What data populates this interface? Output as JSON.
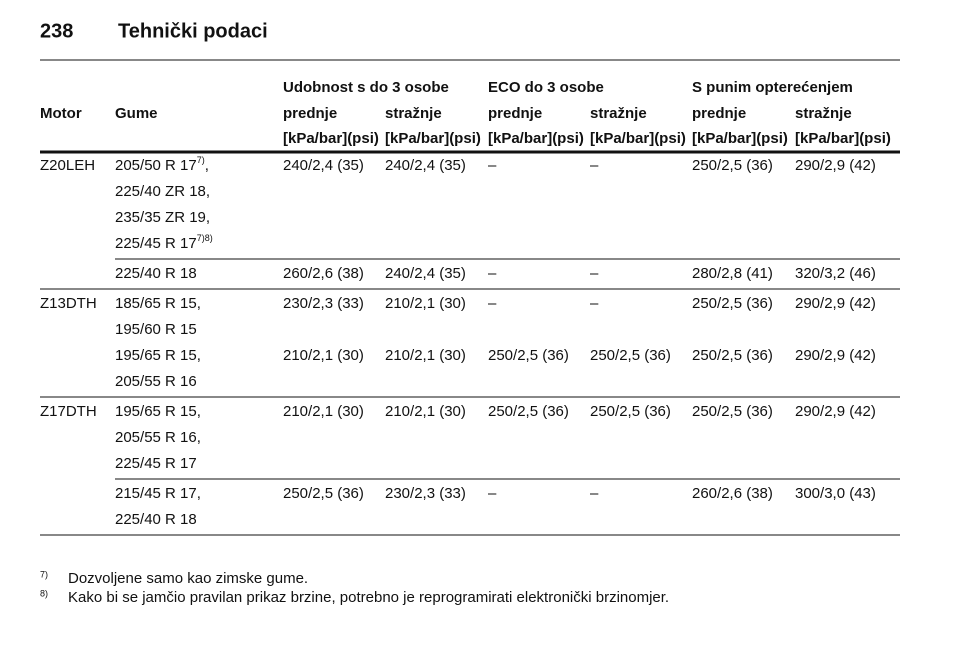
{
  "header": {
    "page_number": "238",
    "title": "Tehnički podaci"
  },
  "table": {
    "motor_header": "Motor",
    "tires_header": "Gume",
    "group_headers": [
      "Udobnost s do 3 osobe",
      "ECO do 3 osobe",
      "S punim opterećenjem"
    ],
    "sub_headers": [
      "prednje",
      "stražnje",
      "prednje",
      "stražnje",
      "prednje",
      "stražnje"
    ],
    "units": [
      "[kPa/bar](psi)",
      "[kPa/bar](psi)",
      "[kPa/bar](psi)",
      "[kPa/bar](psi)",
      "[kPa/bar](psi)",
      "[kPa/bar](psi)"
    ],
    "groups": [
      {
        "motor": "Z20LEH",
        "rows": [
          {
            "tires": [
              {
                "text": "205/50 R 17",
                "note": "7)",
                "suffix": ","
              },
              "225/40 ZR 18,",
              "235/35 ZR 19,",
              {
                "text": "225/45 R 17",
                "note": "7)8)"
              }
            ],
            "values": [
              [
                "240/2,4 (35)",
                "240/2,4 (35)",
                "–",
                "–",
                "250/2,5 (36)",
                "290/2,9 (42)"
              ]
            ]
          },
          {
            "tires": [
              "225/40 R 18"
            ],
            "values": [
              [
                "260/2,6 (38)",
                "240/2,4 (35)",
                "–",
                "–",
                "280/2,8 (41)",
                "320/3,2 (46)"
              ]
            ]
          }
        ]
      },
      {
        "motor": "Z13DTH",
        "rows": [
          {
            "tires": [
              "185/65 R 15,",
              "195/60 R 15",
              "195/65 R 15,",
              "205/55 R 16"
            ],
            "values": [
              [
                "230/2,3 (33)",
                "210/2,1 (30)",
                "–",
                "–",
                "250/2,5 (36)",
                "290/2,9 (42)"
              ],
              [
                "210/2,1 (30)",
                "210/2,1 (30)",
                "250/2,5 (36)",
                "250/2,5 (36)",
                "250/2,5 (36)",
                "290/2,9 (42)"
              ]
            ]
          }
        ]
      },
      {
        "motor": "Z17DTH",
        "rows": [
          {
            "tires": [
              "195/65 R 15,",
              "205/55 R 16,",
              "225/45 R 17"
            ],
            "values": [
              [
                "210/2,1 (30)",
                "210/2,1 (30)",
                "250/2,5 (36)",
                "250/2,5 (36)",
                "250/2,5 (36)",
                "290/2,9 (42)"
              ]
            ]
          },
          {
            "tires": [
              "215/45 R 17,",
              "225/40 R 18"
            ],
            "values": [
              [
                "250/2,5 (36)",
                "230/2,3 (33)",
                "–",
                "–",
                "260/2,6 (38)",
                "300/3,0 (43)"
              ]
            ]
          }
        ]
      }
    ]
  },
  "footnotes": [
    {
      "mark": "7)",
      "text": "Dozvoljene samo kao zimske gume."
    },
    {
      "mark": "8)",
      "text": "Kako bi se jamčio pravilan prikaz brzine, potrebno je reprogramirati elektronički brzinomjer."
    }
  ]
}
